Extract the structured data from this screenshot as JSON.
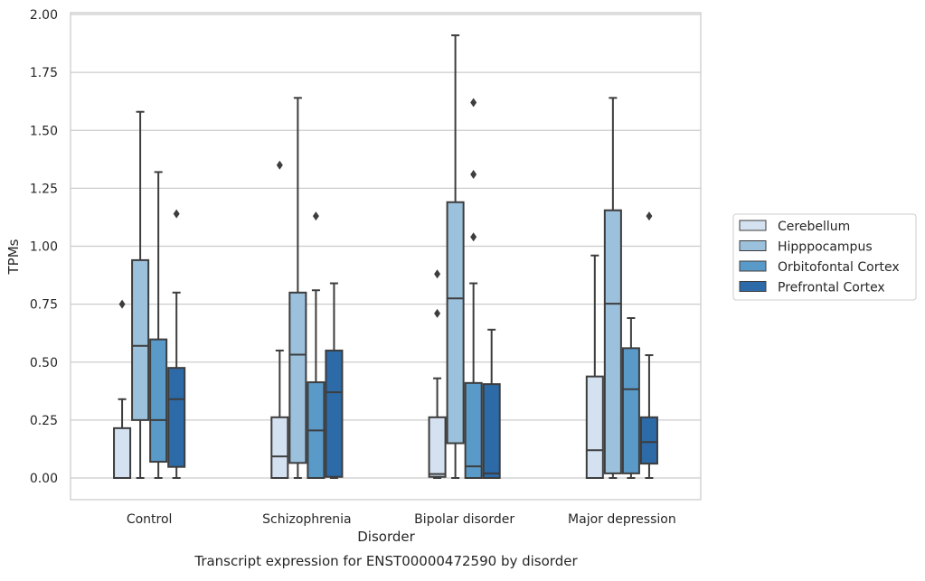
{
  "chart_data": {
    "type": "box",
    "xlabel": "Disorder",
    "ylabel": "TPMs",
    "caption": "Transcript expression for ENST00000472590 by disorder",
    "ylim": [
      -0.09,
      2.0
    ],
    "yticks": [
      0.0,
      0.25,
      0.5,
      0.75,
      1.0,
      1.25,
      1.5,
      1.75,
      2.0
    ],
    "ytick_labels": [
      "0.00",
      "0.25",
      "0.50",
      "0.75",
      "1.00",
      "1.25",
      "1.50",
      "1.75",
      "2.00"
    ],
    "grid": "horizontal",
    "legend_position": "right",
    "categories": [
      "Control",
      "Schizophrenia",
      "Bipolar disorder",
      "Major depression"
    ],
    "series": [
      {
        "name": "Cerebellum",
        "color": "#d4e1f0",
        "boxes": [
          {
            "min": 0.0,
            "q1": 0.0,
            "median": 0.0,
            "q3": 0.215,
            "max": 0.34,
            "outliers": [
              0.75
            ]
          },
          {
            "min": 0.0,
            "q1": 0.0,
            "median": 0.093,
            "q3": 0.262,
            "max": 0.55,
            "outliers": [
              1.35
            ]
          },
          {
            "min": 0.0,
            "q1": 0.005,
            "median": 0.017,
            "q3": 0.262,
            "max": 0.43,
            "outliers": [
              0.71,
              0.88
            ]
          },
          {
            "min": 0.0,
            "q1": 0.0,
            "median": 0.12,
            "q3": 0.438,
            "max": 0.96,
            "outliers": []
          }
        ]
      },
      {
        "name": "Hipppocampus",
        "color": "#9cc1dc",
        "boxes": [
          {
            "min": 0.0,
            "q1": 0.25,
            "median": 0.57,
            "q3": 0.94,
            "max": 1.58,
            "outliers": []
          },
          {
            "min": 0.0,
            "q1": 0.065,
            "median": 0.532,
            "q3": 0.8,
            "max": 1.64,
            "outliers": []
          },
          {
            "min": 0.0,
            "q1": 0.15,
            "median": 0.775,
            "q3": 1.19,
            "max": 1.91,
            "outliers": []
          },
          {
            "min": 0.0,
            "q1": 0.02,
            "median": 0.752,
            "q3": 1.155,
            "max": 1.64,
            "outliers": []
          }
        ]
      },
      {
        "name": "Orbitofontal Cortex",
        "color": "#5a9ac9",
        "boxes": [
          {
            "min": 0.0,
            "q1": 0.07,
            "median": 0.25,
            "q3": 0.598,
            "max": 1.32,
            "outliers": []
          },
          {
            "min": 0.0,
            "q1": 0.0,
            "median": 0.205,
            "q3": 0.413,
            "max": 0.81,
            "outliers": [
              1.13
            ]
          },
          {
            "min": 0.0,
            "q1": 0.0,
            "median": 0.05,
            "q3": 0.41,
            "max": 0.84,
            "outliers": [
              1.04,
              1.31,
              1.62
            ]
          },
          {
            "min": 0.0,
            "q1": 0.02,
            "median": 0.383,
            "q3": 0.56,
            "max": 0.69,
            "outliers": []
          }
        ]
      },
      {
        "name": "Prefrontal Cortex",
        "color": "#2c6aa8",
        "boxes": [
          {
            "min": 0.0,
            "q1": 0.048,
            "median": 0.34,
            "q3": 0.475,
            "max": 0.8,
            "outliers": [
              1.14
            ]
          },
          {
            "min": 0.0,
            "q1": 0.005,
            "median": 0.37,
            "q3": 0.55,
            "max": 0.84,
            "outliers": []
          },
          {
            "min": 0.0,
            "q1": 0.0,
            "median": 0.02,
            "q3": 0.405,
            "max": 0.64,
            "outliers": []
          },
          {
            "min": 0.0,
            "q1": 0.062,
            "median": 0.155,
            "q3": 0.262,
            "max": 0.53,
            "outliers": [
              1.13
            ]
          }
        ]
      }
    ]
  }
}
